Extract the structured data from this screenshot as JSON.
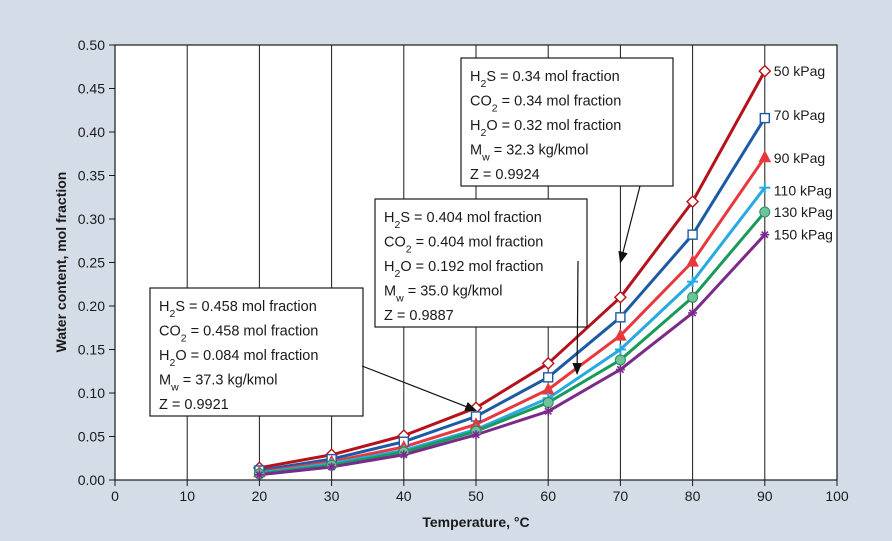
{
  "chart_data": {
    "type": "line",
    "xlabel": "Temperature, °C",
    "ylabel": "Water content, mol fraction",
    "xlim": [
      0,
      100
    ],
    "ylim": [
      0,
      0.5
    ],
    "xticks": [
      0,
      10,
      20,
      30,
      40,
      50,
      60,
      70,
      80,
      90,
      100
    ],
    "yticks": [
      0.0,
      0.05,
      0.1,
      0.15,
      0.2,
      0.25,
      0.3,
      0.35,
      0.4,
      0.45,
      0.5
    ],
    "ytick_labels": [
      "0.00",
      "0.05",
      "0.10",
      "0.15",
      "0.20",
      "0.25",
      "0.30",
      "0.35",
      "0.40",
      "0.45",
      "0.50"
    ],
    "grid": "vertical",
    "x": [
      20,
      30,
      40,
      50,
      60,
      70,
      80,
      90
    ],
    "series": [
      {
        "name": "50 kPag",
        "color": "#b5121b",
        "marker": "diamond",
        "values": [
          0.014,
          0.029,
          0.051,
          0.083,
          0.134,
          0.21,
          0.32,
          0.47
        ]
      },
      {
        "name": "70 kPag",
        "color": "#1c5aa6",
        "marker": "square",
        "values": [
          0.011,
          0.024,
          0.044,
          0.073,
          0.118,
          0.187,
          0.282,
          0.416
        ]
      },
      {
        "name": "90 kPag",
        "color": "#e8383d",
        "marker": "triangle",
        "values": [
          0.009,
          0.021,
          0.038,
          0.064,
          0.104,
          0.166,
          0.251,
          0.371
        ]
      },
      {
        "name": "110 kPag",
        "color": "#27a9e1",
        "marker": "plus",
        "values": [
          0.008,
          0.019,
          0.034,
          0.058,
          0.094,
          0.15,
          0.228,
          0.336
        ]
      },
      {
        "name": "130 kPag",
        "color": "#1a9a5a",
        "marker": "circle",
        "values": [
          0.007,
          0.017,
          0.032,
          0.056,
          0.089,
          0.138,
          0.21,
          0.308
        ]
      },
      {
        "name": "150 kPag",
        "color": "#7b2a8c",
        "marker": "star",
        "values": [
          0.006,
          0.015,
          0.029,
          0.052,
          0.079,
          0.127,
          0.192,
          0.282
        ]
      }
    ],
    "annotations": [
      {
        "lines": [
          "H2S = 0.34 mol fraction",
          "CO2 = 0.34 mol fraction",
          "H2O = 0.32 mol fraction",
          "Mw = 32.3 kg/kmol",
          "Z = 0.9924"
        ],
        "points_to": {
          "x": 70,
          "y": 0.25
        }
      },
      {
        "lines": [
          "H2S = 0.404 mol fraction",
          "CO2 = 0.404 mol fraction",
          "H2O = 0.192 mol fraction",
          "Mw = 35.0 kg/kmol",
          "Z = 0.9887"
        ],
        "points_to": {
          "x": 64,
          "y": 0.122
        }
      },
      {
        "lines": [
          "H2S = 0.458 mol fraction",
          "CO2 = 0.458 mol fraction",
          "H2O = 0.084 mol fraction",
          "Mw = 37.3 kg/kmol",
          "Z = 0.9921"
        ],
        "points_to": {
          "x": 50,
          "y": 0.08
        }
      }
    ]
  }
}
